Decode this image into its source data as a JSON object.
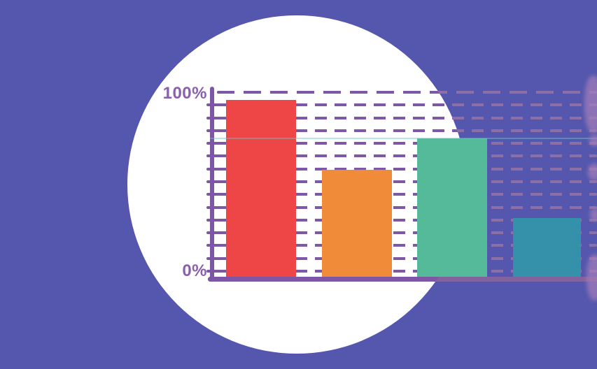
{
  "chart_data": {
    "type": "bar",
    "values": [
      96,
      58,
      75,
      32
    ],
    "unit": "%",
    "ytick_labels": {
      "top": "100%",
      "bottom": "0%"
    },
    "ylim": [
      0,
      100
    ],
    "grid": "dashed-horizontal-lines",
    "gridline_count": 15,
    "legend": "none",
    "title": "",
    "bar_colors": [
      "#ee4646",
      "#f08b39",
      "#55ba9a",
      "#3590a9"
    ]
  },
  "colors": {
    "background": "#5457ad",
    "circle": "#ffffff",
    "axis_strong": "#7d57a5",
    "axis_muted": "#80639f",
    "grid_strong": "#7d58a4",
    "grid_muted": "#8d6fa8",
    "label": "#8a5fad",
    "seam": "rgba(100,200,195,0.45)",
    "blob": "rgba(165,125,185,0.7)"
  }
}
